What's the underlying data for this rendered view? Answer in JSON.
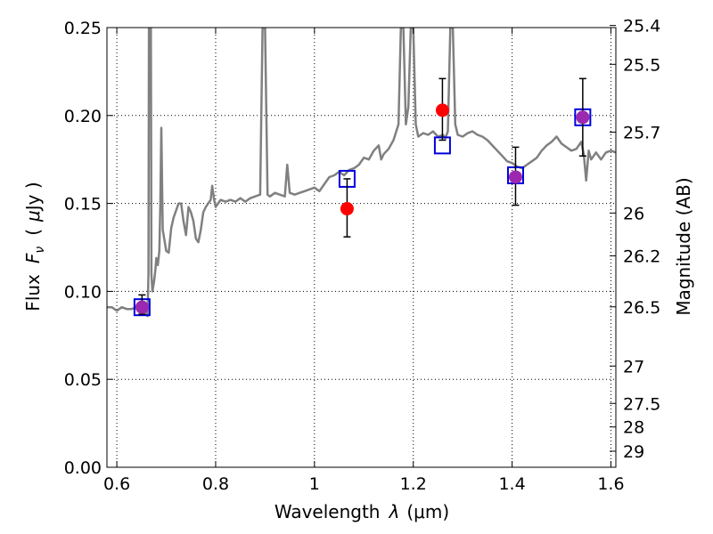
{
  "chart_data": {
    "type": "scatter",
    "xlabel_text": "Wavelength",
    "xlabel_symbol": "λ",
    "xlabel_unit": "(μm)",
    "ylabel_text": "Flux",
    "ylabel_symbol": "F",
    "ylabel_sub": "ν",
    "ylabel_unit_open": "(",
    "ylabel_unit_mu": "μ",
    "ylabel_unit_rest": "Jy )",
    "y2label": "Magnitude (AB)",
    "xlim": [
      0.58,
      1.61
    ],
    "ylim": [
      0.0,
      0.25
    ],
    "xticks": [
      {
        "value": 0.6,
        "label": "0.6"
      },
      {
        "value": 0.8,
        "label": "0.8"
      },
      {
        "value": 1.0,
        "label": "1"
      },
      {
        "value": 1.2,
        "label": "1.2"
      },
      {
        "value": 1.4,
        "label": "1.4"
      },
      {
        "value": 1.6,
        "label": "1.6"
      }
    ],
    "yticks": [
      {
        "value": 0.0,
        "label": "0.00"
      },
      {
        "value": 0.05,
        "label": "0.05"
      },
      {
        "value": 0.1,
        "label": "0.10"
      },
      {
        "value": 0.15,
        "label": "0.15"
      },
      {
        "value": 0.2,
        "label": "0.20"
      },
      {
        "value": 0.25,
        "label": "0.25"
      }
    ],
    "magnitude_ticks": [
      {
        "mag": 25.4,
        "label": "25.4"
      },
      {
        "mag": 25.5,
        "label": "25.5"
      },
      {
        "mag": 25.7,
        "label": "25.7"
      },
      {
        "mag": 26,
        "label": "26"
      },
      {
        "mag": 26.2,
        "label": "26.2"
      },
      {
        "mag": 26.5,
        "label": "26.5"
      },
      {
        "mag": 27,
        "label": "27"
      },
      {
        "mag": 27.5,
        "label": "27.5"
      },
      {
        "mag": 28,
        "label": "28"
      },
      {
        "mag": 29,
        "label": "29"
      }
    ],
    "grid": true,
    "colors": {
      "spectrum": "#808080",
      "observed": "#ff0000",
      "model": "#0000dd",
      "errorbar": "#000000",
      "overlap": "#9c28b0"
    },
    "series": [
      {
        "kind": "spectrum",
        "points": [
          [
            0.58,
            0.091
          ],
          [
            0.59,
            0.091
          ],
          [
            0.6,
            0.089
          ],
          [
            0.61,
            0.091
          ],
          [
            0.62,
            0.09
          ],
          [
            0.63,
            0.09
          ],
          [
            0.64,
            0.091
          ],
          [
            0.655,
            0.09
          ],
          [
            0.66,
            0.088
          ],
          [
            0.662,
            0.086
          ],
          [
            0.664,
            0.11
          ],
          [
            0.665,
            0.25
          ],
          [
            0.667,
            0.25
          ],
          [
            0.669,
            0.25
          ],
          [
            0.67,
            0.11
          ],
          [
            0.672,
            0.1
          ],
          [
            0.675,
            0.105
          ],
          [
            0.678,
            0.112
          ],
          [
            0.68,
            0.119
          ],
          [
            0.683,
            0.115
          ],
          [
            0.686,
            0.123
          ],
          [
            0.688,
            0.15
          ],
          [
            0.69,
            0.193
          ],
          [
            0.693,
            0.135
          ],
          [
            0.697,
            0.128
          ],
          [
            0.7,
            0.123
          ],
          [
            0.705,
            0.122
          ],
          [
            0.71,
            0.136
          ],
          [
            0.715,
            0.142
          ],
          [
            0.72,
            0.146
          ],
          [
            0.725,
            0.15
          ],
          [
            0.73,
            0.15
          ],
          [
            0.735,
            0.14
          ],
          [
            0.74,
            0.132
          ],
          [
            0.745,
            0.148
          ],
          [
            0.75,
            0.145
          ],
          [
            0.755,
            0.14
          ],
          [
            0.76,
            0.13
          ],
          [
            0.765,
            0.128
          ],
          [
            0.77,
            0.135
          ],
          [
            0.775,
            0.145
          ],
          [
            0.78,
            0.148
          ],
          [
            0.785,
            0.15
          ],
          [
            0.79,
            0.152
          ],
          [
            0.793,
            0.16
          ],
          [
            0.797,
            0.152
          ],
          [
            0.8,
            0.148
          ],
          [
            0.81,
            0.152
          ],
          [
            0.82,
            0.151
          ],
          [
            0.83,
            0.152
          ],
          [
            0.84,
            0.151
          ],
          [
            0.85,
            0.153
          ],
          [
            0.86,
            0.151
          ],
          [
            0.87,
            0.153
          ],
          [
            0.88,
            0.154
          ],
          [
            0.89,
            0.155
          ],
          [
            0.895,
            0.25
          ],
          [
            0.9,
            0.25
          ],
          [
            0.905,
            0.155
          ],
          [
            0.91,
            0.154
          ],
          [
            0.92,
            0.156
          ],
          [
            0.93,
            0.155
          ],
          [
            0.94,
            0.154
          ],
          [
            0.945,
            0.172
          ],
          [
            0.95,
            0.156
          ],
          [
            0.96,
            0.155
          ],
          [
            0.97,
            0.156
          ],
          [
            0.98,
            0.157
          ],
          [
            0.99,
            0.158
          ],
          [
            1.0,
            0.159
          ],
          [
            1.01,
            0.157
          ],
          [
            1.02,
            0.161
          ],
          [
            1.03,
            0.165
          ],
          [
            1.04,
            0.166
          ],
          [
            1.05,
            0.168
          ],
          [
            1.06,
            0.166
          ],
          [
            1.07,
            0.169
          ],
          [
            1.08,
            0.17
          ],
          [
            1.09,
            0.172
          ],
          [
            1.1,
            0.176
          ],
          [
            1.11,
            0.175
          ],
          [
            1.12,
            0.18
          ],
          [
            1.13,
            0.183
          ],
          [
            1.135,
            0.175
          ],
          [
            1.14,
            0.178
          ],
          [
            1.15,
            0.181
          ],
          [
            1.16,
            0.186
          ],
          [
            1.17,
            0.195
          ],
          [
            1.175,
            0.25
          ],
          [
            1.18,
            0.25
          ],
          [
            1.185,
            0.195
          ],
          [
            1.19,
            0.205
          ],
          [
            1.195,
            0.25
          ],
          [
            1.2,
            0.25
          ],
          [
            1.205,
            0.195
          ],
          [
            1.21,
            0.188
          ],
          [
            1.22,
            0.19
          ],
          [
            1.23,
            0.189
          ],
          [
            1.24,
            0.191
          ],
          [
            1.25,
            0.188
          ],
          [
            1.26,
            0.189
          ],
          [
            1.265,
            0.187
          ],
          [
            1.27,
            0.191
          ],
          [
            1.275,
            0.25
          ],
          [
            1.28,
            0.25
          ],
          [
            1.285,
            0.195
          ],
          [
            1.29,
            0.189
          ],
          [
            1.3,
            0.188
          ],
          [
            1.31,
            0.19
          ],
          [
            1.32,
            0.191
          ],
          [
            1.33,
            0.189
          ],
          [
            1.34,
            0.188
          ],
          [
            1.35,
            0.186
          ],
          [
            1.36,
            0.183
          ],
          [
            1.37,
            0.18
          ],
          [
            1.38,
            0.177
          ],
          [
            1.39,
            0.174
          ],
          [
            1.4,
            0.173
          ],
          [
            1.41,
            0.171
          ],
          [
            1.42,
            0.17
          ],
          [
            1.43,
            0.172
          ],
          [
            1.44,
            0.174
          ],
          [
            1.45,
            0.176
          ],
          [
            1.46,
            0.18
          ],
          [
            1.47,
            0.183
          ],
          [
            1.48,
            0.185
          ],
          [
            1.49,
            0.188
          ],
          [
            1.5,
            0.184
          ],
          [
            1.51,
            0.182
          ],
          [
            1.52,
            0.18
          ],
          [
            1.53,
            0.181
          ],
          [
            1.54,
            0.185
          ],
          [
            1.545,
            0.178
          ],
          [
            1.55,
            0.163
          ],
          [
            1.555,
            0.18
          ],
          [
            1.56,
            0.175
          ],
          [
            1.57,
            0.179
          ],
          [
            1.58,
            0.175
          ],
          [
            1.59,
            0.179
          ],
          [
            1.6,
            0.18
          ],
          [
            1.61,
            0.179
          ]
        ]
      },
      {
        "kind": "observed",
        "points": [
          {
            "x": 0.651,
            "y": 0.091,
            "lo": 0.087,
            "hi": 0.098
          },
          {
            "x": 1.066,
            "y": 0.147,
            "lo": 0.131,
            "hi": 0.164
          },
          {
            "x": 1.259,
            "y": 0.203,
            "lo": 0.186,
            "hi": 0.221
          },
          {
            "x": 1.407,
            "y": 0.165,
            "lo": 0.149,
            "hi": 0.182
          },
          {
            "x": 1.543,
            "y": 0.199,
            "lo": 0.177,
            "hi": 0.221
          }
        ]
      },
      {
        "kind": "model",
        "points": [
          {
            "x": 0.651,
            "y": 0.091
          },
          {
            "x": 1.066,
            "y": 0.164
          },
          {
            "x": 1.259,
            "y": 0.183
          },
          {
            "x": 1.407,
            "y": 0.166
          },
          {
            "x": 1.543,
            "y": 0.199
          }
        ]
      }
    ]
  }
}
